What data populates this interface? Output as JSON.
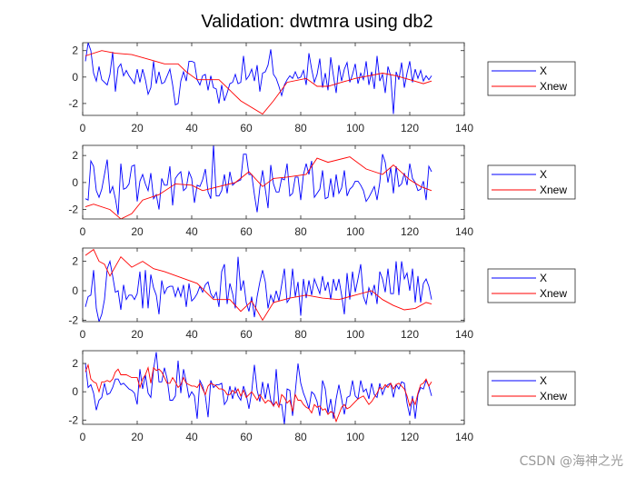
{
  "chart_data": {
    "type": "line",
    "title": "Validation: dwtmra using db2",
    "watermark": "CSDN @海神之光",
    "colors": {
      "X": "#0000ff",
      "Xnew": "#ff0000"
    },
    "subplots": [
      {
        "xlim": [
          0,
          140
        ],
        "ylim": [
          -2.9,
          2.6
        ],
        "xticks": [
          0,
          20,
          40,
          60,
          80,
          100,
          120,
          140
        ],
        "yticks": [
          -2,
          0,
          2
        ],
        "legend": {
          "position": "outside-right",
          "entries": [
            "X",
            "Xnew"
          ]
        },
        "series": [
          {
            "name": "X",
            "y": [
              1.2,
              2.6,
              2.0,
              0.3,
              -0.3,
              0.8,
              -0.2,
              -0.4,
              -0.6,
              0.2,
              1.9,
              -1.1,
              0.7,
              1.0,
              0.1,
              0.5,
              0.1,
              -0.2,
              -0.5,
              0.6,
              -0.4,
              0.6,
              -0.2,
              -1.3,
              -0.8,
              1.2,
              -0.5,
              0.4,
              -0.5,
              -0.4,
              0.1,
              0.6,
              -0.6,
              -2.1,
              -2.0,
              -0.3,
              0.4,
              -0.3,
              1.2,
              1.2,
              1.1,
              -0.2,
              -0.6,
              0.1,
              0.2,
              -1.0,
              0.1,
              -0.8,
              -0.9,
              -2.0,
              -0.6,
              -1.8,
              -1.2,
              -0.5,
              -0.4,
              0.2,
              -0.5,
              -0.4,
              1.6,
              -0.2,
              0.1,
              0.6,
              -0.3,
              0.9,
              -1.1,
              0.3,
              0.4,
              0.9,
              2.1,
              0.2,
              -0.1,
              -0.7,
              -1.4,
              -0.6,
              -0.2,
              0.1,
              -0.1,
              0.4,
              -0.1,
              0.0,
              0.5,
              -0.6,
              1.8,
              0.6,
              -0.4,
              0.2,
              1.4,
              -0.8,
              0.3,
              -1.0,
              1.5,
              0.1,
              -1.2,
              0.9,
              -0.3,
              0.6,
              1.1,
              -0.4,
              0.2,
              1.0,
              -0.5,
              0.3,
              -0.2,
              1.2,
              -0.6,
              0.4,
              -0.9,
              1.6,
              -0.3,
              0.2,
              -1.2,
              0.8,
              0.1,
              -2.8,
              0.4,
              -0.2,
              1.1,
              -0.8,
              0.3,
              1.2,
              -0.4,
              0.6,
              -0.1,
              0.5,
              -0.3,
              0.1,
              -0.2,
              0.1
            ]
          },
          {
            "name": "Xnew",
            "x": [
              1,
              7,
              12,
              18,
              25,
              30,
              35,
              38,
              42,
              50,
              58,
              66,
              70,
              75,
              82,
              86,
              90,
              95,
              100,
              105,
              110,
              115,
              120,
              125,
              128
            ],
            "y": [
              1.6,
              2.0,
              1.8,
              1.7,
              1.3,
              1.0,
              1.0,
              0.4,
              -0.2,
              -0.2,
              -1.8,
              -2.8,
              -1.8,
              -0.4,
              -0.1,
              -0.7,
              -0.7,
              -0.4,
              -0.1,
              0.1,
              0.3,
              0.1,
              -0.2,
              -0.5,
              -0.3
            ]
          }
        ]
      },
      {
        "xlim": [
          0,
          140
        ],
        "ylim": [
          -2.7,
          2.75
        ],
        "xticks": [
          0,
          20,
          40,
          60,
          80,
          100,
          120,
          140
        ],
        "yticks": [
          -2,
          0,
          2
        ],
        "legend": {
          "position": "outside-right",
          "entries": [
            "X",
            "Xnew"
          ]
        },
        "series": [
          {
            "name": "X",
            "y": [
              -1.2,
              -1.3,
              1.6,
              1.2,
              -0.6,
              -1.1,
              -0.5,
              0.6,
              1.7,
              -0.8,
              -0.3,
              -1.2,
              -2.4,
              1.4,
              -0.5,
              -0.4,
              -0.1,
              1.2,
              1.3,
              -1.4,
              0.1,
              0.6,
              -0.1,
              -0.6,
              0.7,
              -1.2,
              -0.9,
              -2.0,
              0.3,
              -0.2,
              -0.2,
              1.2,
              -1.7,
              0.3,
              0.6,
              0.8,
              -0.6,
              -0.4,
              0.8,
              0.3,
              -1.5,
              -0.2,
              -0.3,
              0.2,
              1.0,
              -0.7,
              -1.2,
              2.8,
              -1.0,
              -1.0,
              -0.6,
              0.6,
              -0.8,
              0.8,
              -0.2,
              0.0,
              0.1,
              0.2,
              2.1,
              2.1,
              0.6,
              0.6,
              -0.9,
              -2.2,
              -0.4,
              0.9,
              -0.5,
              -1.9,
              1.3,
              -0.1,
              -0.7,
              -0.7,
              0.3,
              0.2,
              1.4,
              -1.0,
              -0.8,
              0.4,
              0.4,
              -1.3,
              0.6,
              1.4,
              0.6,
              1.6,
              -1.1,
              -0.8,
              -0.5,
              0.9,
              -1.2,
              -1.1,
              0.3,
              -1.1,
              0.6,
              -0.8,
              -0.4,
              0.9,
              -1.0,
              -0.5,
              -0.3,
              0.1,
              0.1,
              -0.2,
              -0.6,
              -1.4,
              -1.1,
              -0.7,
              -0.3,
              -1.3,
              0.0,
              2.1,
              1.5,
              0.0,
              1.1,
              -0.8,
              1.2,
              -0.3,
              -0.1,
              0.7,
              -0.2,
              1.4,
              0.3,
              0.0,
              -0.6,
              -0.5,
              0.1,
              -1.3,
              1.2,
              0.8
            ]
          },
          {
            "name": "Xnew",
            "x": [
              1,
              4,
              10,
              14,
              18,
              22,
              28,
              34,
              40,
              44,
              50,
              56,
              61,
              66,
              70,
              75,
              82,
              86,
              90,
              98,
              104,
              110,
              114,
              120,
              124,
              128
            ],
            "y": [
              -1.8,
              -1.6,
              -2.0,
              -2.7,
              -2.3,
              -1.3,
              -0.9,
              -0.1,
              -0.2,
              -0.6,
              -0.3,
              0.0,
              0.8,
              -0.3,
              0.3,
              0.4,
              0.6,
              1.8,
              1.5,
              1.9,
              1.0,
              0.6,
              1.3,
              0.2,
              -0.3,
              -0.6
            ]
          }
        ]
      },
      {
        "xlim": [
          0,
          140
        ],
        "ylim": [
          -2.1,
          2.9
        ],
        "xticks": [
          0,
          20,
          40,
          60,
          80,
          100,
          120,
          140
        ],
        "yticks": [
          -2,
          0,
          2
        ],
        "legend": {
          "position": "outside-right",
          "entries": [
            "X",
            "Xnew"
          ]
        },
        "series": [
          {
            "name": "X",
            "y": [
              -1.1,
              -0.4,
              -0.3,
              1.4,
              -1.2,
              -2.1,
              -1.6,
              -0.6,
              1.5,
              2.0,
              1.0,
              -0.1,
              0.0,
              -1.3,
              0.4,
              -0.6,
              -0.3,
              -0.3,
              -0.6,
              -0.2,
              1.3,
              -1.2,
              1.4,
              -1.2,
              1.1,
              0.2,
              -0.3,
              -1.6,
              0.7,
              -0.2,
              0.2,
              0.3,
              0.3,
              -0.4,
              0.2,
              -0.4,
              0.4,
              -1.1,
              0.5,
              -0.7,
              -0.5,
              -0.2,
              0.3,
              -0.1,
              0.4,
              0.6,
              -0.2,
              -0.5,
              -0.1,
              -1.1,
              1.3,
              1.8,
              -0.9,
              0.5,
              -0.2,
              -1.2,
              2.3,
              0.0,
              0.7,
              -0.8,
              -1.4,
              -0.4,
              -1.8,
              -0.4,
              0.6,
              1.4,
              0.6,
              -1.2,
              -0.3,
              -0.8,
              0.0,
              -0.7,
              0.4,
              1.5,
              -0.8,
              -0.5,
              1.5,
              -0.4,
              0.6,
              -1.7,
              0.8,
              -0.5,
              0.7,
              -0.3,
              0.8,
              0.3,
              -0.2,
              1.0,
              0.0,
              0.6,
              -0.6,
              0.8,
              0.0,
              0.8,
              -0.3,
              -1.6,
              1.2,
              -0.6,
              1.3,
              -0.1,
              0.8,
              1.8,
              -0.4,
              -0.9,
              0.2,
              -0.3,
              0.4,
              -0.9,
              1.3,
              0.8,
              -0.1,
              1.5,
              -0.2,
              -0.2,
              2.0,
              -0.3,
              2.0,
              0.8,
              1.2,
              0.0,
              1.5,
              -0.8,
              1.0,
              -0.8,
              0.5,
              0.8,
              0.3,
              -0.6
            ]
          },
          {
            "name": "Xnew",
            "x": [
              1,
              4,
              6,
              8,
              10,
              14,
              18,
              22,
              26,
              30,
              36,
              42,
              48,
              54,
              58,
              62,
              66,
              70,
              76,
              82,
              88,
              94,
              100,
              106,
              110,
              114,
              118,
              122,
              126,
              128
            ],
            "y": [
              2.4,
              2.8,
              2.0,
              1.8,
              1.0,
              2.3,
              1.6,
              2.0,
              1.5,
              1.3,
              0.9,
              0.5,
              -0.6,
              -0.6,
              -1.4,
              -0.7,
              -2.0,
              -0.8,
              -0.5,
              -0.3,
              -0.5,
              -0.6,
              -0.3,
              0.0,
              -0.6,
              -1.0,
              -1.3,
              -1.2,
              -0.8,
              -0.9
            ]
          }
        ]
      },
      {
        "xlim": [
          0,
          140
        ],
        "ylim": [
          -2.3,
          2.9
        ],
        "xticks": [
          0,
          20,
          40,
          60,
          80,
          100,
          120,
          140
        ],
        "yticks": [
          -2,
          0,
          2
        ],
        "legend": {
          "position": "outside-right",
          "entries": [
            "X",
            "Xnew"
          ]
        },
        "series": [
          {
            "name": "X",
            "y": [
              2.0,
              0.3,
              0.5,
              -0.1,
              -1.3,
              -0.6,
              -0.4,
              0.6,
              -0.2,
              -0.1,
              0.3,
              0.9,
              0.9,
              0.5,
              0.6,
              0.4,
              0.2,
              0.1,
              -0.1,
              -0.9,
              1.6,
              0.2,
              1.2,
              -0.1,
              -0.4,
              1.6,
              2.8,
              0.7,
              0.7,
              1.7,
              0.9,
              -0.6,
              -0.6,
              -0.3,
              2.2,
              -0.1,
              1.6,
              0.7,
              -0.4,
              0.0,
              -0.3,
              -1.9,
              0.8,
              0.4,
              -0.3,
              -1.8,
              0.8,
              0.3,
              0.5,
              0.5,
              0.6,
              -0.9,
              -0.6,
              0.4,
              -0.5,
              0.3,
              -0.3,
              -0.6,
              0.4,
              -0.2,
              -1.2,
              0.0,
              1.9,
              0.1,
              -0.7,
              0.7,
              -0.5,
              0.6,
              -0.6,
              -1.0,
              1.6,
              -0.9,
              -0.9,
              -2.3,
              0.2,
              0.1,
              -1.7,
              0.0,
              2.0,
              0.6,
              -0.1,
              -0.6,
              -1.2,
              0.0,
              -0.2,
              -0.7,
              -1.7,
              0.8,
              0.2,
              -1.5,
              -0.5,
              -1.9,
              -0.5,
              0.5,
              -0.5,
              -1.6,
              -0.4,
              -0.3,
              0.8,
              -0.3,
              -0.5,
              0.8,
              0.0,
              0.2,
              -0.5,
              0.6,
              -0.2,
              -0.4,
              0.6,
              -0.2,
              0.3,
              0.5,
              0.6,
              -0.4,
              0.5,
              0.2,
              0.7,
              0.6,
              -0.8,
              -1.7,
              -0.3,
              -1.9,
              -0.2,
              0.3,
              0.2,
              0.8,
              0.4,
              -0.3
            ]
          },
          {
            "name": "Xnew",
            "y": [
              1.4,
              1.9,
              0.9,
              0.7,
              0.6,
              0.0,
              0.7,
              0.7,
              0.8,
              0.7,
              0.9,
              1.4,
              1.6,
              1.2,
              1.2,
              1.2,
              1.1,
              1.0,
              1.0,
              1.0,
              0.3,
              0.9,
              1.2,
              1.7,
              0.6,
              1.7,
              1.5,
              1.6,
              1.4,
              1.0,
              0.6,
              0.6,
              1.0,
              0.7,
              0.3,
              0.5,
              1.0,
              0.6,
              0.5,
              0.4,
              0.4,
              0.3,
              0.6,
              0.2,
              -0.2,
              0.4,
              0.6,
              0.5,
              0.4,
              0.2,
              0.2,
              0.1,
              -0.2,
              -0.2,
              0.1,
              -0.1,
              0.2,
              -0.3,
              0.1,
              -0.4,
              -0.2,
              0.0,
              -0.3,
              -0.6,
              -0.2,
              -0.5,
              -0.8,
              -0.6,
              -0.7,
              -1.0,
              -0.7,
              -1.1,
              -0.2,
              -0.4,
              -0.8,
              -0.6,
              -1.4,
              -0.2,
              -0.6,
              -0.6,
              -0.9,
              -1.1,
              -1.2,
              -1.5,
              -0.9,
              -1.1,
              -1.0,
              -1.3,
              -1.2,
              -1.6,
              -1.4,
              -1.5,
              -2.1,
              -1.6,
              -1.1,
              -0.9,
              -1.2,
              -1.1,
              -0.9,
              -0.7,
              -0.5,
              -0.4,
              -0.3,
              -0.6,
              -0.9,
              -0.7,
              -0.4,
              -0.1,
              0.3,
              0.2,
              0.5,
              0.3,
              0.6,
              0.2,
              0.5,
              0.6,
              0.4,
              0.2,
              -0.3,
              -1.0,
              -0.5,
              -0.9,
              -0.1,
              0.5,
              0.6,
              0.9,
              0.4,
              0.7
            ]
          }
        ]
      }
    ]
  }
}
